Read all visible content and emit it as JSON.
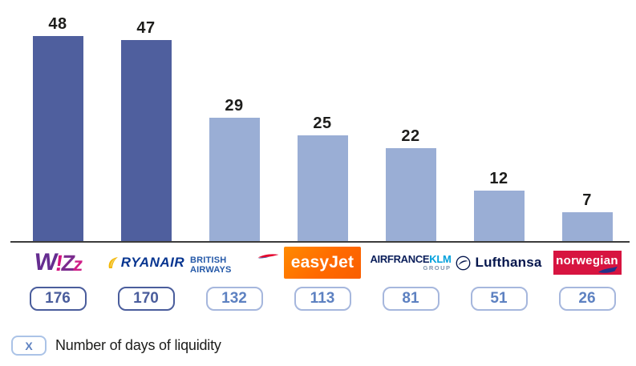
{
  "chart_data": {
    "type": "bar",
    "title": "",
    "categories": [
      "Wizz Air",
      "Ryanair",
      "British Airways",
      "easyJet",
      "Air France KLM Group",
      "Lufthansa",
      "Norwegian"
    ],
    "values": [
      48,
      47,
      29,
      25,
      22,
      12,
      7
    ],
    "days_of_liquidity": [
      176,
      170,
      132,
      113,
      81,
      51,
      26
    ],
    "bar_colors": [
      "#4f5f9e",
      "#4f5f9e",
      "#9aaed5",
      "#9aaed5",
      "#9aaed5",
      "#9aaed5",
      "#9aaed5"
    ],
    "axis_color": "#3c3c3c",
    "value_label_color": "#1d1d1b",
    "ylim": [
      0,
      50
    ],
    "grid": false,
    "legend_position": "bottom-left"
  },
  "badges": {
    "dark_border": "#4a5d9c",
    "dark_text": "#4a5d9c",
    "light_border": "#a6b7dd",
    "light_text": "#5d81c1"
  },
  "legend": {
    "symbol": "X",
    "symbol_color": "#5d81c1",
    "label": "Number of days of liquidity"
  },
  "logos": {
    "wizz": {
      "letters": [
        "W",
        "!",
        "Z",
        "z"
      ],
      "colors": [
        "#652d90",
        "#d4147f",
        "#7b2c8e",
        "#cf1d87"
      ]
    },
    "ryanair": {
      "text": "RYANAIR",
      "color": "#073590",
      "harp_color": "#f2b705"
    },
    "british_airways": {
      "text": "BRITISH AIRWAYS",
      "color": "#2559a8",
      "ribbon_red": "#e4002b",
      "ribbon_blue": "#1b3f94"
    },
    "easyjet": {
      "text": "easyJet",
      "bg": "#ff6a00",
      "text_color": "#ffffff"
    },
    "airfrance_klm": {
      "part1": "AIRFRANCE",
      "part2": "KLM",
      "part3": "GROUP",
      "color1": "#0a1e5a",
      "color2": "#00a0dc",
      "color3": "#7d93ad"
    },
    "lufthansa": {
      "text": "Lufthansa",
      "color": "#05164d"
    },
    "norwegian": {
      "text": "norwegian",
      "bg": "#d71440",
      "text_color": "#ffffff",
      "swoosh_color": "#22338a"
    }
  }
}
